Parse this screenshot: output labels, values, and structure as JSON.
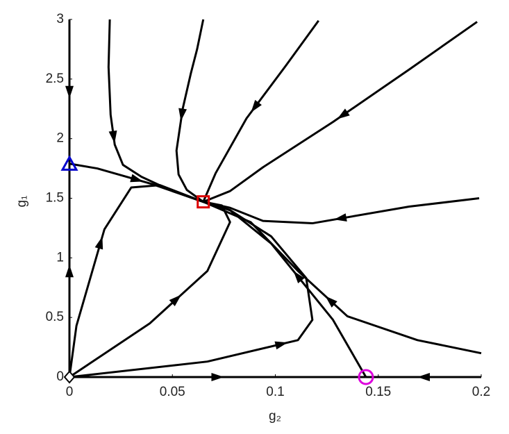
{
  "chart_data": {
    "type": "line",
    "x_label": "g₂",
    "y_label": "g₁",
    "xlim": [
      0,
      0.2
    ],
    "ylim": [
      0,
      3
    ],
    "xticks": [
      0,
      0.05,
      0.1,
      0.15,
      0.2
    ],
    "yticks": [
      0,
      0.5,
      1,
      1.5,
      2,
      2.5,
      3
    ],
    "series": [
      {
        "color": "#000000",
        "x": [
          0.0196,
          0.019,
          0.02,
          0.022,
          0.026,
          0.035,
          0.05,
          0.065
        ],
        "values": [
          3,
          2.6,
          2.2,
          1.95,
          1.78,
          1.68,
          1.56,
          1.47
        ]
      },
      {
        "color": "#000000",
        "x": [
          0.065,
          0.062,
          0.059,
          0.055,
          0.052,
          0.053,
          0.057,
          0.065
        ],
        "values": [
          3,
          2.75,
          2.55,
          2.25,
          1.9,
          1.7,
          1.57,
          1.47
        ]
      },
      {
        "color": "#000000",
        "x": [
          0.121,
          0.105,
          0.086,
          0.071,
          0.065
        ],
        "values": [
          2.99,
          2.61,
          2.17,
          1.71,
          1.47
        ]
      },
      {
        "color": "#000000",
        "x": [
          0.198,
          0.165,
          0.128,
          0.094,
          0.078,
          0.065
        ],
        "values": [
          2.98,
          2.58,
          2.14,
          1.76,
          1.56,
          1.47
        ]
      },
      {
        "color": "#000000",
        "x": [
          0.199,
          0.165,
          0.118,
          0.094,
          0.078,
          0.065
        ],
        "values": [
          1.5,
          1.43,
          1.29,
          1.31,
          1.42,
          1.47
        ]
      },
      {
        "color": "#000000",
        "x": [
          0,
          0.0135,
          0.04,
          0.065
        ],
        "values": [
          1.79,
          1.75,
          1.62,
          1.47
        ]
      },
      {
        "color": "#000000",
        "x": [
          0,
          0.0034,
          0.017,
          0.03,
          0.044,
          0.065
        ],
        "values": [
          0,
          0.43,
          1.24,
          1.59,
          1.61,
          1.47
        ]
      },
      {
        "color": "#000000",
        "x": [
          0,
          0.039,
          0.067,
          0.078,
          0.074,
          0.065
        ],
        "values": [
          0,
          0.45,
          0.89,
          1.3,
          1.44,
          1.47
        ]
      },
      {
        "color": "#000000",
        "x": [
          0,
          0.067,
          0.111,
          0.118,
          0.115,
          0.098,
          0.078,
          0.065
        ],
        "values": [
          0,
          0.13,
          0.31,
          0.48,
          0.83,
          1.18,
          1.4,
          1.47
        ]
      },
      {
        "color": "#000000",
        "x": [
          0.144,
          0.128,
          0.098,
          0.078,
          0.065
        ],
        "values": [
          0,
          0.48,
          1.12,
          1.4,
          1.47
        ]
      },
      {
        "color": "#000000",
        "x": [
          0.2,
          0.169,
          0.135,
          0.111,
          0.088,
          0.065
        ],
        "values": [
          0.2,
          0.31,
          0.51,
          0.89,
          1.3,
          1.47
        ]
      },
      {
        "color": "#000000",
        "x": [
          0,
          0.144
        ],
        "values": [
          0,
          0
        ]
      },
      {
        "color": "#000000",
        "x": [
          0.2,
          0.144
        ],
        "values": [
          0,
          0
        ]
      },
      {
        "color": "#000000",
        "x": [
          0,
          0
        ],
        "values": [
          0,
          1.78
        ]
      },
      {
        "color": "#000000",
        "x": [
          0,
          0
        ],
        "values": [
          3,
          1.78
        ]
      }
    ],
    "points": [
      {
        "x": 0,
        "y": 1.78,
        "marker": "triangle",
        "color": "#0000cc"
      },
      {
        "x": 0.065,
        "y": 1.47,
        "marker": "square",
        "color": "#dd0000"
      },
      {
        "x": 0.144,
        "y": 0,
        "marker": "circle",
        "color": "#dd00dd"
      },
      {
        "x": 0,
        "y": 0,
        "marker": "diamond",
        "color": "#000000"
      }
    ]
  }
}
